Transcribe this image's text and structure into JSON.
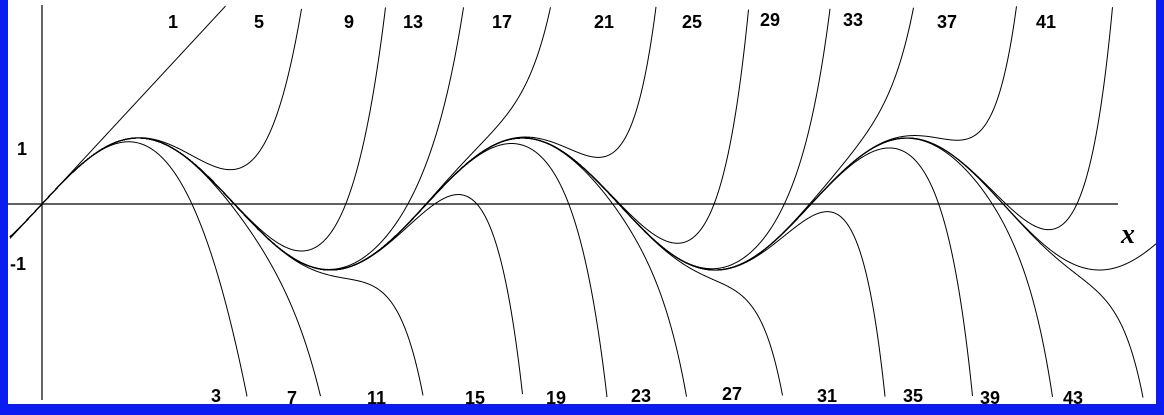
{
  "colors": {
    "frame": "#0b1cf0",
    "background": "#ffffff",
    "ink": "#000000"
  },
  "chart_data": {
    "type": "line",
    "title": "",
    "xlabel": "x",
    "ylabel": "",
    "yticks": [
      "1",
      "-1"
    ],
    "ylim": [
      -3.1,
      3.3
    ],
    "xlim": [
      -0.3,
      17.0
    ],
    "grid": false,
    "reference_curve": "sin(x)",
    "series_kind": "Taylor polynomials of sin(x) about 0",
    "degrees": [
      1,
      3,
      5,
      7,
      9,
      11,
      13,
      15,
      17,
      19,
      21,
      23,
      25,
      27,
      29,
      31,
      33,
      35,
      37,
      39,
      41,
      43
    ],
    "top_labels": [
      "1",
      "5",
      "9",
      "13",
      "17",
      "21",
      "25",
      "29",
      "33",
      "37",
      "41"
    ],
    "bottom_labels": [
      "3",
      "7",
      "11",
      "15",
      "19",
      "23",
      "27",
      "31",
      "35",
      "39",
      "43"
    ]
  }
}
